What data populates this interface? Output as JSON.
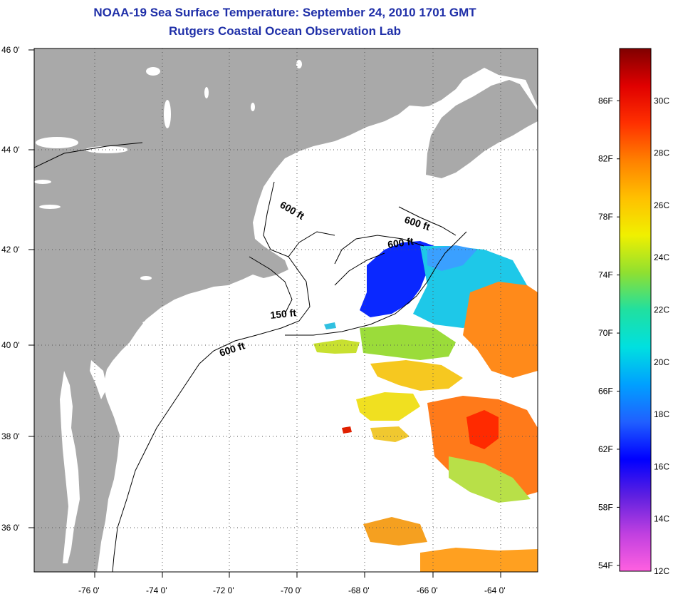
{
  "header": {
    "title": "NOAA-19 Sea Surface Temperature:  September 24, 2010 1701 GMT",
    "subtitle": "Rutgers Coastal Ocean Observation Lab"
  },
  "map": {
    "lat_ticks": [
      "46 0'",
      "44 0'",
      "42 0'",
      "40 0'",
      "38 0'",
      "36 0'"
    ],
    "lon_ticks": [
      "-76 0'",
      "-74 0'",
      "-72 0'",
      "-70 0'",
      "-68 0'",
      "-66 0'",
      "-64 0'"
    ],
    "contour_labels": [
      "600 ft",
      "600 ft",
      "600 ft",
      "150 ft",
      "600 ft"
    ],
    "colors": {
      "land": "#a9a9a9",
      "ocean": "#ffffff",
      "grid": "#555555"
    }
  },
  "colorbar": {
    "fahrenheit_labels": [
      "86F",
      "82F",
      "78F",
      "74F",
      "70F",
      "66F",
      "62F",
      "58F",
      "54F"
    ],
    "celsius_labels": [
      "30C",
      "28C",
      "26C",
      "24C",
      "22C",
      "20C",
      "18C",
      "16C",
      "14C",
      "12C"
    ],
    "gradient": [
      "#800000",
      "#e00000",
      "#ff3000",
      "#ff8000",
      "#ffc000",
      "#f0f000",
      "#90e030",
      "#20e0a0",
      "#00e0e0",
      "#00a0ff",
      "#2060ff",
      "#0000ff",
      "#6020e0",
      "#c040e0",
      "#ff60e0"
    ]
  }
}
